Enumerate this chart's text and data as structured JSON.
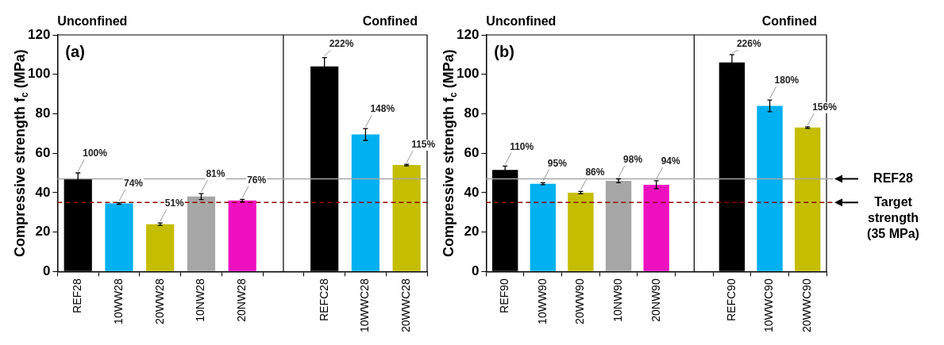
{
  "chart_data": [
    {
      "type": "bar",
      "categories": [
        "REF28",
        "10WW28",
        "20WW28",
        "10NW28",
        "20NW28",
        null,
        "REFC28",
        "10WWC28",
        "20WWC28"
      ],
      "values": [
        47,
        34.5,
        24,
        38,
        36,
        null,
        104,
        69.5,
        54
      ],
      "errors": [
        3,
        0.4,
        0.6,
        1.5,
        0.6,
        null,
        4.5,
        3,
        0.4
      ],
      "colors": [
        "#000000",
        "#00b0f0",
        "#c4bd00",
        "#a6a6a6",
        "#ee10c0",
        "#000000",
        "#000000",
        "#00b0f0",
        "#c4bd00"
      ],
      "ylabel": "Compressive strength f$_{c}$ (MPa)",
      "ylim": [
        0,
        120
      ],
      "yticks": [
        0,
        20,
        40,
        60,
        80,
        100,
        120
      ],
      "annotations": [
        "Unconfined",
        "Confined",
        "(a)",
        {
          "text": "100%",
          "x": "REF28",
          "y": 50
        },
        {
          "text": "74%",
          "x": "10WW28",
          "y": 34.9
        },
        {
          "text": "51%",
          "x": "20WW28",
          "y": 24.6
        },
        {
          "text": "81%",
          "x": "10NW28",
          "y": 39.5
        },
        {
          "text": "76%",
          "x": "20NW28",
          "y": 36.6
        },
        {
          "text": "222%",
          "x": "REFC28",
          "y": 108.5
        },
        {
          "text": "148%",
          "x": "10WWC28",
          "y": 72.5
        },
        {
          "text": "115%",
          "x": "20WWC28",
          "y": 54.4
        }
      ],
      "ref_lines": [
        {
          "axis": "y",
          "value": 47,
          "color": "#a6a6a6"
        },
        {
          "axis": "y",
          "value": 35,
          "color": "#8b0000",
          "line_style": "dashed"
        }
      ]
    },
    {
      "type": "bar",
      "categories": [
        "REF90",
        "10WW90",
        "20WW90",
        "10NW90",
        "20NW90",
        null,
        "REFC90",
        "10WWC90",
        "20WWC90"
      ],
      "values": [
        51.5,
        44.5,
        40,
        46,
        44,
        null,
        106,
        84,
        73
      ],
      "errors": [
        2,
        0.5,
        0.6,
        1,
        2,
        null,
        4,
        3,
        0.4
      ],
      "colors": [
        "#000000",
        "#00b0f0",
        "#c4bd00",
        "#a6a6a6",
        "#ee10c0",
        "#000000",
        "#000000",
        "#00b0f0",
        "#c4bd00"
      ],
      "ylabel": "Compressive strength f$_{c}$ (MPa)",
      "ylim": [
        0,
        120
      ],
      "yticks": [
        0,
        20,
        40,
        60,
        80,
        100,
        120
      ],
      "annotations": [
        "Unconfined",
        "Confined",
        "(b)",
        {
          "text": "110%",
          "x": "REF90",
          "y": 53.5
        },
        {
          "text": "95%",
          "x": "10WW90",
          "y": 45
        },
        {
          "text": "86%",
          "x": "20WW90",
          "y": 40.6
        },
        {
          "text": "98%",
          "x": "10NW90",
          "y": 47
        },
        {
          "text": "94%",
          "x": "20NW90",
          "y": 46
        },
        {
          "text": "226%",
          "x": "REFC90",
          "y": 110
        },
        {
          "text": "180%",
          "x": "10WWC90",
          "y": 87
        },
        {
          "text": "156%",
          "x": "20WWC90",
          "y": 73.4
        }
      ],
      "ref_lines": [
        {
          "axis": "y",
          "value": 47,
          "color": "#a6a6a6",
          "label": "REF28"
        },
        {
          "axis": "y",
          "value": 35,
          "color": "#8b0000",
          "line_style": "dashed",
          "label": "Target strength (35 MPa)"
        }
      ]
    }
  ]
}
